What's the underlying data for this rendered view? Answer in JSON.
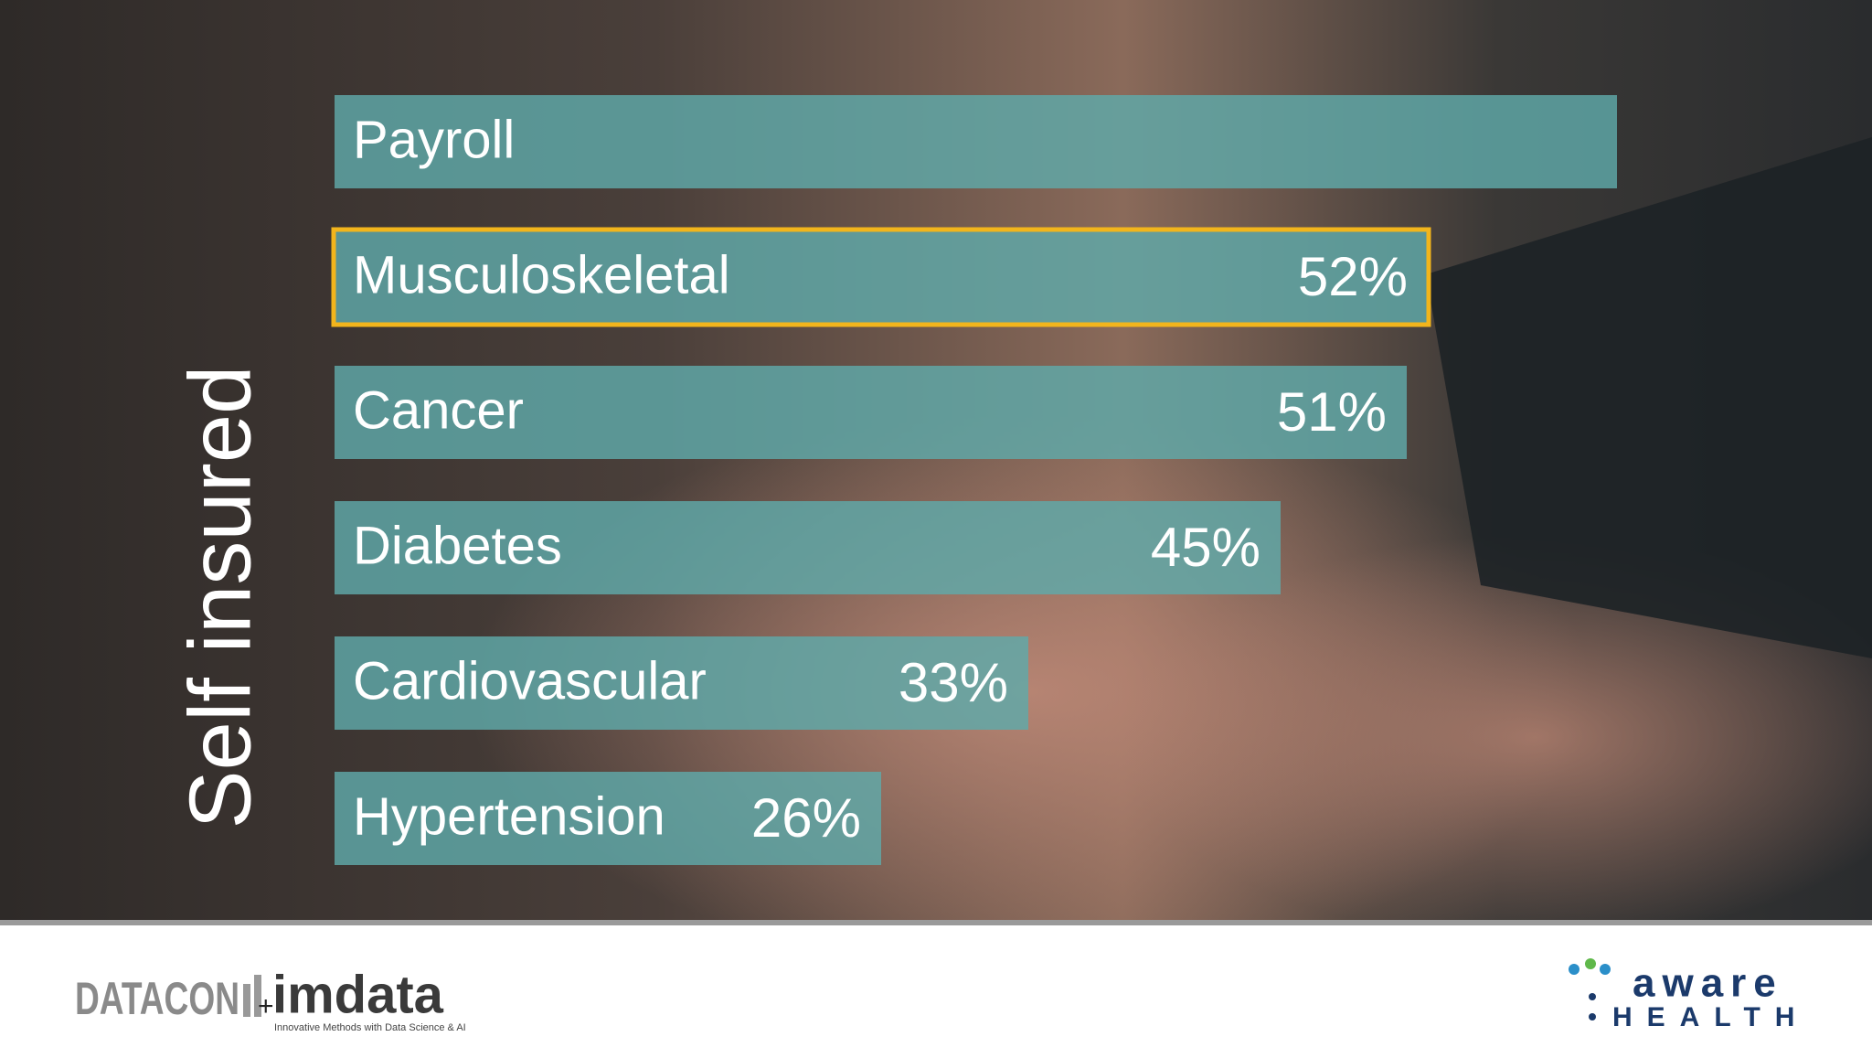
{
  "chart_data": {
    "type": "bar",
    "orientation": "horizontal",
    "y_label": "Self insured",
    "categories": [
      "Payroll",
      "Musculoskeletal",
      "Cancer",
      "Diabetes",
      "Cardiovascular",
      "Hypertension"
    ],
    "values": [
      61,
      52,
      51,
      45,
      33,
      26
    ],
    "value_labels": [
      null,
      "52%",
      "51%",
      "45%",
      "33%",
      "26%"
    ],
    "color": "#5fa9a9",
    "highlight": "Musculoskeletal",
    "highlight_color": "#f2b51c"
  },
  "footer": {
    "left_logo": "DATACON",
    "left_logo_partner": "imdata",
    "left_logo_tagline": "Innovative Methods with Data Science & AI",
    "right_logo_top": "aware",
    "right_logo_bottom": "HEALTH"
  }
}
